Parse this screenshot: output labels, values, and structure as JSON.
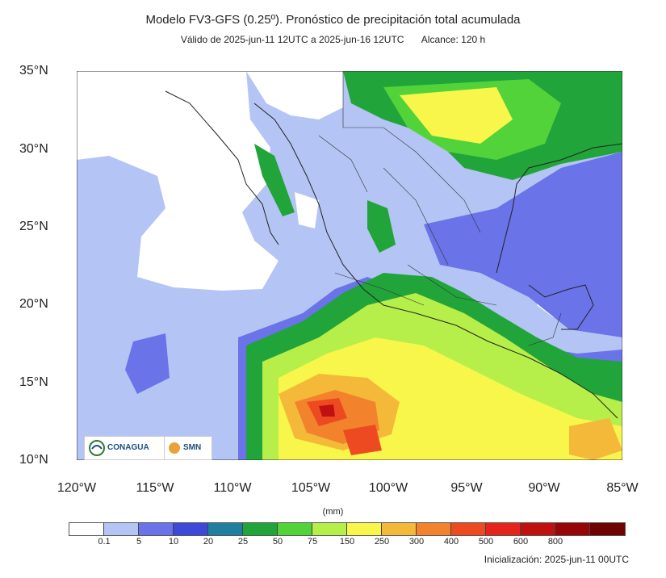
{
  "title": "Modelo FV3-GFS (0.25º). Pronóstico de precipitación total acumulada",
  "subtitle_valid": "Válido de 2025-jun-11 12UTC a 2025-jun-16 12UTC",
  "subtitle_range": "Alcance: 120 h",
  "lat_labels": [
    "35°N",
    "30°N",
    "25°N",
    "20°N",
    "15°N",
    "10°N"
  ],
  "lon_labels": [
    "120°W",
    "115°W",
    "110°W",
    "105°W",
    "100°W",
    "95°W",
    "90°W",
    "85°W"
  ],
  "units": "(mm)",
  "colorbar": {
    "colors": [
      "#ffffff",
      "#b4c4f4",
      "#6a73e8",
      "#3d49d8",
      "#1f7fa0",
      "#21a43a",
      "#53d33a",
      "#b6ee4a",
      "#f8f64a",
      "#f5b93a",
      "#f2822b",
      "#ee4a22",
      "#e6241b",
      "#c11010",
      "#960606",
      "#6f0303"
    ],
    "labels": [
      "0.1",
      "5",
      "10",
      "20",
      "25",
      "50",
      "75",
      "150",
      "250",
      "300",
      "400",
      "500",
      "600",
      "800"
    ]
  },
  "init": "Inicialización: 2025-jun-11 00UTC",
  "logos": {
    "conagua": "CONAGUA",
    "smn": "SMN"
  }
}
